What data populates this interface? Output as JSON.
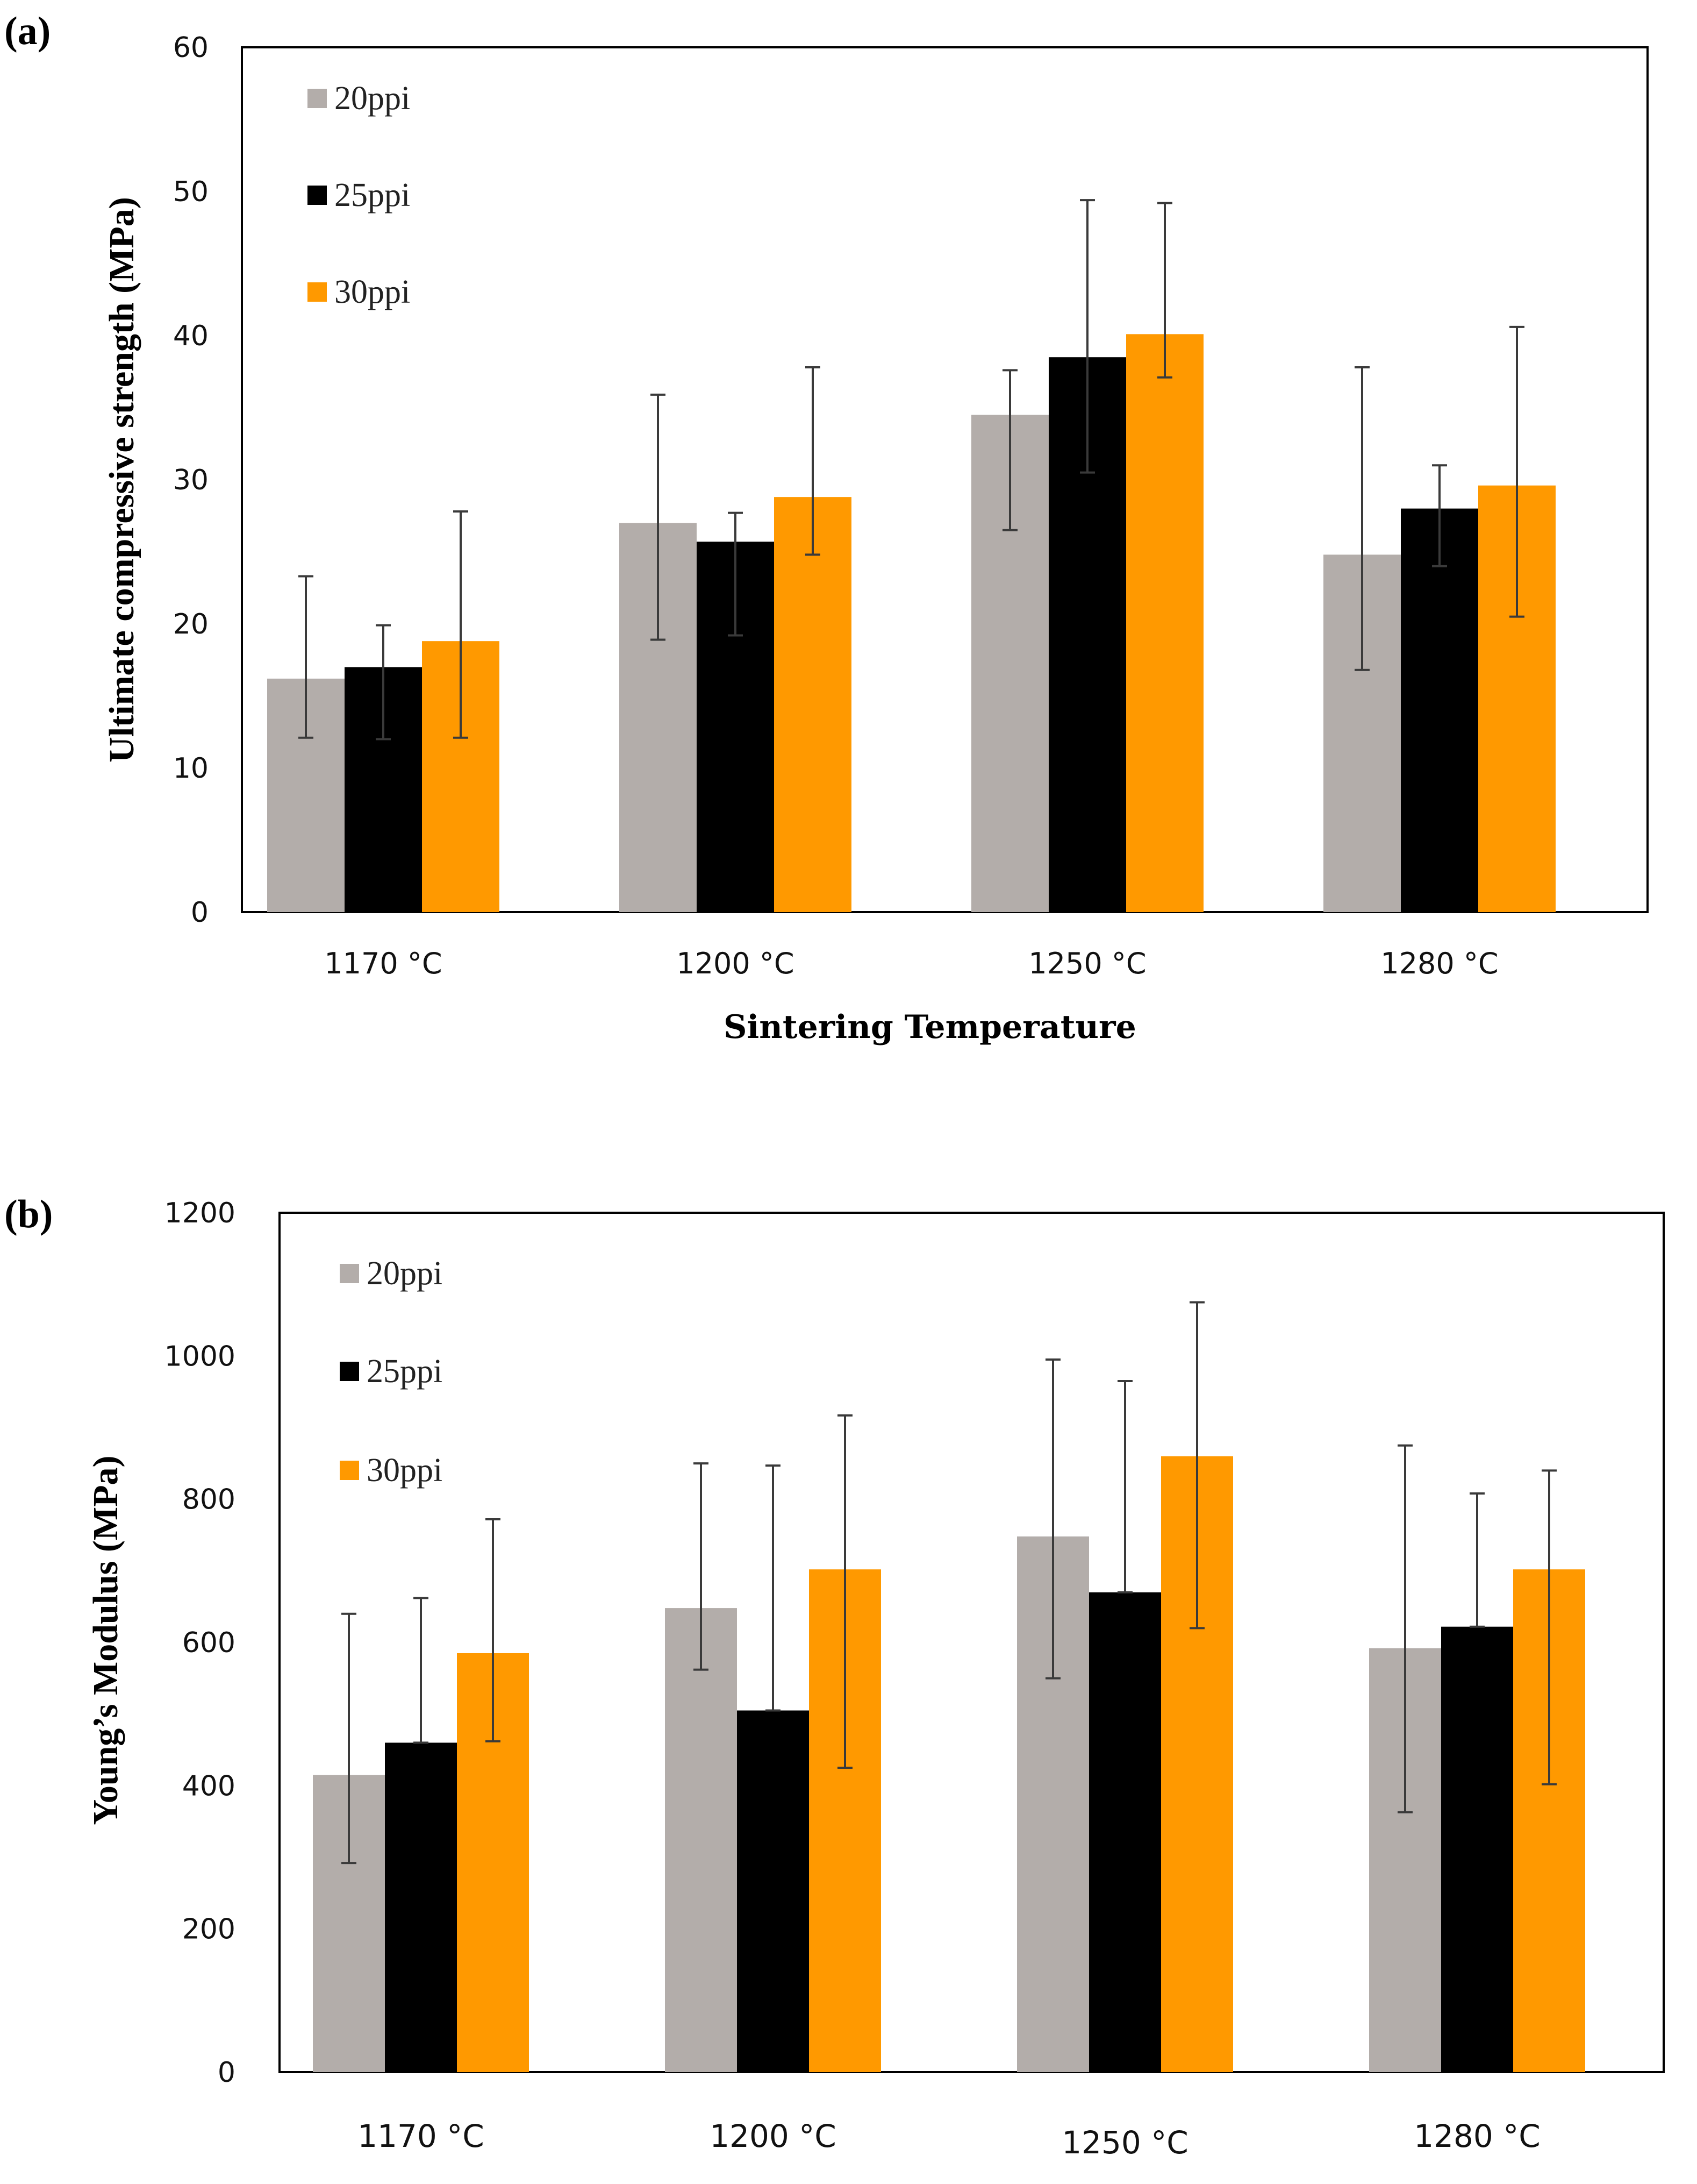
{
  "chart_data": [
    {
      "panel": "(a)",
      "type": "bar",
      "categories": [
        "1170 °C",
        "1200 °C",
        "1250 °C",
        "1280 °C"
      ],
      "series": [
        {
          "name": "20ppi",
          "color": "#b3adaa",
          "values": [
            16.2,
            27.0,
            34.5,
            24.8
          ],
          "err_low": [
            12.1,
            18.9,
            26.5,
            16.8
          ],
          "err_high": [
            23.3,
            35.9,
            37.6,
            37.8
          ]
        },
        {
          "name": "25ppi",
          "color": "#000000",
          "values": [
            17.0,
            25.7,
            38.5,
            28.0
          ],
          "err_low": [
            12.0,
            19.2,
            30.5,
            24.0
          ],
          "err_high": [
            19.9,
            27.7,
            49.4,
            31.0
          ]
        },
        {
          "name": "30ppi",
          "color": "#ff9900",
          "values": [
            18.8,
            28.8,
            40.1,
            29.6
          ],
          "err_low": [
            12.1,
            24.8,
            37.1,
            20.5
          ],
          "err_high": [
            27.8,
            37.8,
            49.2,
            40.6
          ]
        }
      ],
      "xlabel": "Sintering Temperature",
      "ylabel": "Ultimate compressive strength (MPa)",
      "ylim": [
        0,
        60
      ],
      "yticks": [
        "0",
        "10",
        "20",
        "30",
        "40",
        "50",
        "60"
      ],
      "grid": false,
      "legend": "top-left"
    },
    {
      "panel": "(b)",
      "type": "bar",
      "categories": [
        "1170 °C",
        "1200 °C",
        "1250 °C",
        "1280 °C"
      ],
      "series": [
        {
          "name": "20ppi",
          "color": "#b3adaa",
          "values": [
            415,
            648,
            748,
            592
          ],
          "err_low": [
            292,
            562,
            550,
            363
          ],
          "err_high": [
            640,
            850,
            995,
            875
          ]
        },
        {
          "name": "25ppi",
          "color": "#000000",
          "values": [
            460,
            505,
            670,
            622
          ],
          "err_low": [
            460,
            505,
            670,
            622
          ],
          "err_high": [
            662,
            847,
            965,
            808
          ]
        },
        {
          "name": "30ppi",
          "color": "#ff9900",
          "values": [
            585,
            702,
            860,
            702
          ],
          "err_low": [
            462,
            425,
            620,
            402
          ],
          "err_high": [
            772,
            917,
            1075,
            840
          ]
        }
      ],
      "ylabel": "Young’s Modulus (MPa)",
      "ylim": [
        0,
        1200
      ],
      "yticks": [
        "0",
        "200",
        "400",
        "600",
        "800",
        "1000",
        "1200"
      ],
      "grid": false,
      "legend": "top-left"
    }
  ]
}
